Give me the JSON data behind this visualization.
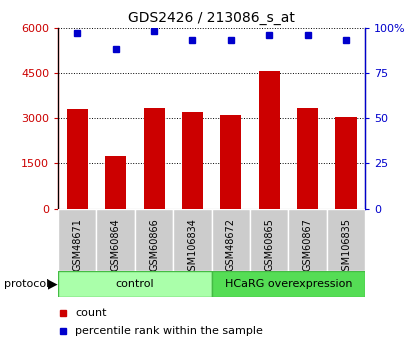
{
  "title": "GDS2426 / 213086_s_at",
  "categories": [
    "GSM48671",
    "GSM60864",
    "GSM60866",
    "GSM106834",
    "GSM48672",
    "GSM60865",
    "GSM60867",
    "GSM106835"
  ],
  "bar_values": [
    3300,
    1750,
    3350,
    3200,
    3100,
    4550,
    3350,
    3050
  ],
  "percentile_values": [
    97,
    88,
    98,
    93,
    93,
    96,
    96,
    93
  ],
  "bar_color": "#cc0000",
  "dot_color": "#0000cc",
  "ylim_left": [
    0,
    6000
  ],
  "ylim_right": [
    0,
    100
  ],
  "yticks_left": [
    0,
    1500,
    3000,
    4500,
    6000
  ],
  "ytick_labels_left": [
    "0",
    "1500",
    "3000",
    "4500",
    "6000"
  ],
  "yticks_right": [
    0,
    25,
    50,
    75,
    100
  ],
  "ytick_labels_right": [
    "0",
    "25",
    "50",
    "75",
    "100%"
  ],
  "control_label": "control",
  "overexpression_label": "HCaRG overexpression",
  "protocol_label": "protocol",
  "legend_count": "count",
  "legend_percentile": "percentile rank within the sample",
  "control_color": "#aaffaa",
  "overexp_color": "#55dd55",
  "tick_bg_color": "#cccccc",
  "n_control": 4,
  "n_overexp": 4,
  "fig_width": 4.15,
  "fig_height": 3.45,
  "dpi": 100
}
